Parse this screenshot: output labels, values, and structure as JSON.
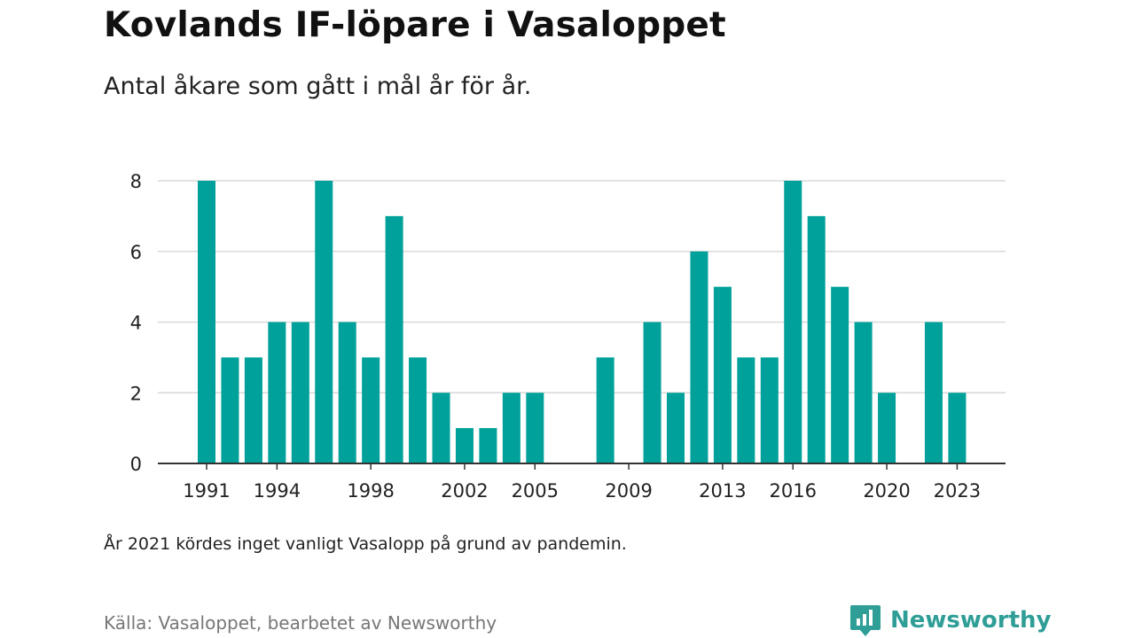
{
  "header": {
    "title": "Kovlands IF-löpare i Vasaloppet",
    "subtitle": "Antal åkare som gått i mål år för år."
  },
  "footer": {
    "note": "År 2021 kördes inget vanligt Vasalopp på grund av pandemin.",
    "source": "Källa: Vasaloppet, bearbetet av Newsworthy",
    "brand": "Newsworthy"
  },
  "colors": {
    "bar": "#00a19a",
    "grid": "#d9d9d9",
    "axis": "#333333",
    "brand": "#2f9e97"
  },
  "chart_data": {
    "type": "bar",
    "title": "Kovlands IF-löpare i Vasaloppet",
    "subtitle": "Antal åkare som gått i mål år för år.",
    "xlabel": "",
    "ylabel": "",
    "ylim": [
      0,
      8
    ],
    "yticks": [
      0,
      2,
      4,
      6,
      8
    ],
    "xticks": [
      1991,
      1994,
      1998,
      2002,
      2005,
      2009,
      2013,
      2016,
      2020,
      2023
    ],
    "grid": true,
    "legend": "none",
    "categories": [
      1991,
      1992,
      1993,
      1994,
      1995,
      1996,
      1997,
      1998,
      1999,
      2000,
      2001,
      2002,
      2003,
      2004,
      2005,
      2006,
      2007,
      2008,
      2009,
      2010,
      2011,
      2012,
      2013,
      2014,
      2015,
      2016,
      2017,
      2018,
      2019,
      2020,
      2021,
      2022,
      2023
    ],
    "values": [
      8,
      3,
      3,
      4,
      4,
      8,
      4,
      3,
      7,
      3,
      2,
      1,
      1,
      2,
      2,
      0,
      0,
      3,
      0,
      4,
      2,
      6,
      5,
      3,
      3,
      8,
      7,
      5,
      4,
      2,
      0,
      4,
      2
    ]
  }
}
